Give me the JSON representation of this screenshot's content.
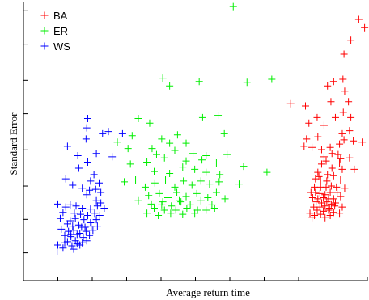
{
  "chart_data": {
    "type": "scatter",
    "title": "",
    "xlabel": "Average return time",
    "ylabel": "Standard Error",
    "xlim": [
      0,
      100
    ],
    "ylim": [
      0,
      100
    ],
    "x_ticks": [
      10,
      20,
      30,
      40,
      50,
      60,
      70,
      80,
      90,
      100
    ],
    "y_ticks": [
      10,
      22,
      34,
      47,
      60,
      72,
      85,
      97
    ],
    "tick_labels_shown": false,
    "grid": false,
    "legend": "top-left",
    "series": [
      {
        "name": "BA",
        "color": "#ff0000",
        "points": [
          [
            99.2,
            90.9
          ],
          [
            97.5,
            93.9
          ],
          [
            95.2,
            86.4
          ],
          [
            93.2,
            81.4
          ],
          [
            90.2,
            71.6
          ],
          [
            92.9,
            72.4
          ],
          [
            88.4,
            70.0
          ],
          [
            93.4,
            68.1
          ],
          [
            89.4,
            64.3
          ],
          [
            94.5,
            64.3
          ],
          [
            82.0,
            62.8
          ],
          [
            77.7,
            63.6
          ],
          [
            85.4,
            58.6
          ],
          [
            90.7,
            58.6
          ],
          [
            93.0,
            60.5
          ],
          [
            95.2,
            58.6
          ],
          [
            83.0,
            56.6
          ],
          [
            87.4,
            55.8
          ],
          [
            92.7,
            52.8
          ],
          [
            94.8,
            53.9
          ],
          [
            85.6,
            51.7
          ],
          [
            82.3,
            50.9
          ],
          [
            81.6,
            48.3
          ],
          [
            83.9,
            47.9
          ],
          [
            86.7,
            47.1
          ],
          [
            89.2,
            47.9
          ],
          [
            91.9,
            49.1
          ],
          [
            93.2,
            50.6
          ],
          [
            95.9,
            50.2
          ],
          [
            98.5,
            49.8
          ],
          [
            87.4,
            44.5
          ],
          [
            89.7,
            45.7
          ],
          [
            92.2,
            43.8
          ],
          [
            94.8,
            44.1
          ],
          [
            91.9,
            42.3
          ],
          [
            86.7,
            41.9
          ],
          [
            89.7,
            40.4
          ],
          [
            92.7,
            40.0
          ],
          [
            96.2,
            40.0
          ],
          [
            85.6,
            38.9
          ],
          [
            88.4,
            38.1
          ],
          [
            90.2,
            37.7
          ],
          [
            84.9,
            36.6
          ],
          [
            86.4,
            36.2
          ],
          [
            88.2,
            35.8
          ],
          [
            90.0,
            36.2
          ],
          [
            92.2,
            36.2
          ],
          [
            84.6,
            33.6
          ],
          [
            86.4,
            33.6
          ],
          [
            88.0,
            33.6
          ],
          [
            89.5,
            34.0
          ],
          [
            91.0,
            33.6
          ],
          [
            93.4,
            33.2
          ],
          [
            84.9,
            31.7
          ],
          [
            86.2,
            31.3
          ],
          [
            87.7,
            30.9
          ],
          [
            89.2,
            31.7
          ],
          [
            91.2,
            31.7
          ],
          [
            84.1,
            29.8
          ],
          [
            85.6,
            29.4
          ],
          [
            87.2,
            29.8
          ],
          [
            88.7,
            29.4
          ],
          [
            90.2,
            29.4
          ],
          [
            92.2,
            30.2
          ],
          [
            85.1,
            28.3
          ],
          [
            86.7,
            27.9
          ],
          [
            88.2,
            28.3
          ],
          [
            89.5,
            27.5
          ],
          [
            90.7,
            27.9
          ],
          [
            84.4,
            26.4
          ],
          [
            86.2,
            26.4
          ],
          [
            87.7,
            26.8
          ],
          [
            89.0,
            26.0
          ],
          [
            90.5,
            26.8
          ],
          [
            92.7,
            26.4
          ],
          [
            85.4,
            25.3
          ],
          [
            87.2,
            24.9
          ],
          [
            88.7,
            25.3
          ],
          [
            86.4,
            23.8
          ],
          [
            89.2,
            23.4
          ],
          [
            91.9,
            24.2
          ],
          [
            84.6,
            23.4
          ],
          [
            87.7,
            22.6
          ],
          [
            83.9,
            22.6
          ],
          [
            90.2,
            24.5
          ],
          [
            83.6,
            31.7
          ],
          [
            85.9,
            37.4
          ],
          [
            83.3,
            24.2
          ],
          [
            88.0,
            43.0
          ],
          [
            91.5,
            45.3
          ]
        ]
      },
      {
        "name": "ER",
        "color": "#00ee00",
        "points": [
          [
            61.0,
            98.5
          ],
          [
            72.2,
            72.4
          ],
          [
            40.5,
            72.8
          ],
          [
            51.1,
            71.6
          ],
          [
            42.5,
            70.0
          ],
          [
            65.0,
            71.3
          ],
          [
            33.4,
            58.3
          ],
          [
            52.1,
            58.6
          ],
          [
            56.6,
            59.4
          ],
          [
            36.7,
            56.6
          ],
          [
            31.6,
            52.1
          ],
          [
            58.4,
            52.8
          ],
          [
            40.2,
            50.9
          ],
          [
            44.8,
            52.4
          ],
          [
            27.3,
            49.8
          ],
          [
            30.4,
            47.5
          ],
          [
            37.4,
            47.5
          ],
          [
            42.5,
            49.4
          ],
          [
            47.3,
            49.4
          ],
          [
            49.3,
            45.7
          ],
          [
            53.1,
            44.9
          ],
          [
            38.7,
            45.3
          ],
          [
            44.0,
            46.8
          ],
          [
            59.2,
            45.3
          ],
          [
            31.1,
            41.9
          ],
          [
            35.9,
            42.6
          ],
          [
            41.0,
            44.1
          ],
          [
            47.3,
            43.0
          ],
          [
            51.9,
            43.4
          ],
          [
            56.1,
            42.3
          ],
          [
            64.0,
            41.1
          ],
          [
            70.8,
            38.9
          ],
          [
            38.0,
            39.2
          ],
          [
            42.5,
            38.5
          ],
          [
            46.3,
            40.8
          ],
          [
            49.8,
            40.0
          ],
          [
            53.1,
            38.9
          ],
          [
            57.1,
            38.1
          ],
          [
            29.3,
            35.5
          ],
          [
            32.6,
            36.2
          ],
          [
            35.4,
            33.6
          ],
          [
            38.2,
            35.1
          ],
          [
            41.3,
            36.2
          ],
          [
            44.0,
            33.6
          ],
          [
            46.5,
            35.8
          ],
          [
            49.0,
            34.3
          ],
          [
            51.6,
            35.8
          ],
          [
            54.1,
            34.7
          ],
          [
            56.9,
            35.5
          ],
          [
            62.7,
            34.7
          ],
          [
            36.4,
            30.6
          ],
          [
            39.5,
            31.3
          ],
          [
            42.0,
            29.8
          ],
          [
            44.6,
            31.7
          ],
          [
            47.3,
            30.2
          ],
          [
            50.4,
            31.3
          ],
          [
            53.6,
            29.8
          ],
          [
            56.1,
            31.7
          ],
          [
            58.6,
            29.4
          ],
          [
            33.4,
            28.7
          ],
          [
            37.2,
            27.5
          ],
          [
            40.5,
            28.3
          ],
          [
            43.0,
            26.8
          ],
          [
            45.8,
            28.3
          ],
          [
            48.5,
            27.2
          ],
          [
            51.6,
            28.7
          ],
          [
            54.8,
            27.2
          ],
          [
            38.0,
            26.0
          ],
          [
            41.0,
            25.3
          ],
          [
            44.3,
            25.3
          ],
          [
            47.5,
            26.0
          ],
          [
            50.6,
            25.3
          ],
          [
            35.9,
            24.2
          ],
          [
            39.2,
            23.4
          ],
          [
            42.8,
            24.2
          ],
          [
            46.3,
            23.8
          ],
          [
            49.8,
            24.2
          ],
          [
            53.1,
            25.3
          ],
          [
            55.6,
            26.0
          ],
          [
            45.3,
            28.7
          ],
          [
            40.2,
            27.2
          ]
        ]
      },
      {
        "name": "WS",
        "color": "#0000ff",
        "points": [
          [
            18.7,
            58.3
          ],
          [
            18.4,
            54.9
          ],
          [
            18.2,
            50.9
          ],
          [
            23.0,
            52.8
          ],
          [
            24.7,
            53.6
          ],
          [
            28.8,
            52.8
          ],
          [
            12.8,
            48.3
          ],
          [
            15.8,
            44.9
          ],
          [
            21.2,
            45.7
          ],
          [
            25.8,
            44.5
          ],
          [
            18.7,
            42.6
          ],
          [
            20.5,
            38.1
          ],
          [
            16.1,
            40.4
          ],
          [
            12.3,
            36.6
          ],
          [
            19.5,
            35.8
          ],
          [
            22.0,
            35.1
          ],
          [
            14.3,
            34.3
          ],
          [
            17.1,
            33.2
          ],
          [
            19.2,
            32.5
          ],
          [
            21.0,
            32.8
          ],
          [
            22.5,
            31.7
          ],
          [
            18.4,
            30.9
          ],
          [
            21.2,
            28.7
          ],
          [
            22.5,
            27.9
          ],
          [
            10.0,
            27.5
          ],
          [
            12.3,
            26.4
          ],
          [
            13.6,
            27.2
          ],
          [
            15.3,
            26.8
          ],
          [
            17.1,
            26.0
          ],
          [
            19.5,
            25.7
          ],
          [
            21.5,
            26.8
          ],
          [
            23.5,
            26.0
          ],
          [
            11.5,
            24.5
          ],
          [
            14.8,
            24.2
          ],
          [
            16.6,
            23.8
          ],
          [
            18.7,
            23.4
          ],
          [
            20.7,
            24.2
          ],
          [
            22.2,
            23.4
          ],
          [
            10.7,
            22.3
          ],
          [
            13.6,
            21.5
          ],
          [
            15.1,
            22.3
          ],
          [
            17.6,
            21.9
          ],
          [
            19.5,
            20.8
          ],
          [
            21.2,
            21.9
          ],
          [
            12.8,
            20.4
          ],
          [
            14.3,
            19.6
          ],
          [
            16.1,
            20.0
          ],
          [
            17.9,
            19.2
          ],
          [
            19.7,
            19.6
          ],
          [
            11.0,
            18.5
          ],
          [
            13.1,
            17.7
          ],
          [
            14.6,
            18.1
          ],
          [
            16.4,
            17.0
          ],
          [
            18.2,
            17.7
          ],
          [
            20.2,
            18.1
          ],
          [
            12.0,
            16.2
          ],
          [
            13.8,
            15.8
          ],
          [
            15.6,
            16.6
          ],
          [
            17.4,
            15.5
          ],
          [
            19.2,
            16.2
          ],
          [
            12.8,
            14.0
          ],
          [
            15.1,
            14.3
          ],
          [
            17.1,
            13.6
          ],
          [
            10.0,
            12.8
          ],
          [
            12.0,
            13.6
          ],
          [
            14.1,
            12.5
          ],
          [
            16.4,
            12.8
          ],
          [
            18.4,
            14.3
          ],
          [
            11.5,
            11.7
          ],
          [
            14.6,
            11.3
          ],
          [
            9.8,
            10.6
          ],
          [
            21.5,
            19.6
          ],
          [
            15.6,
            13.2
          ],
          [
            13.8,
            16.6
          ],
          [
            16.9,
            19.2
          ]
        ]
      }
    ]
  }
}
